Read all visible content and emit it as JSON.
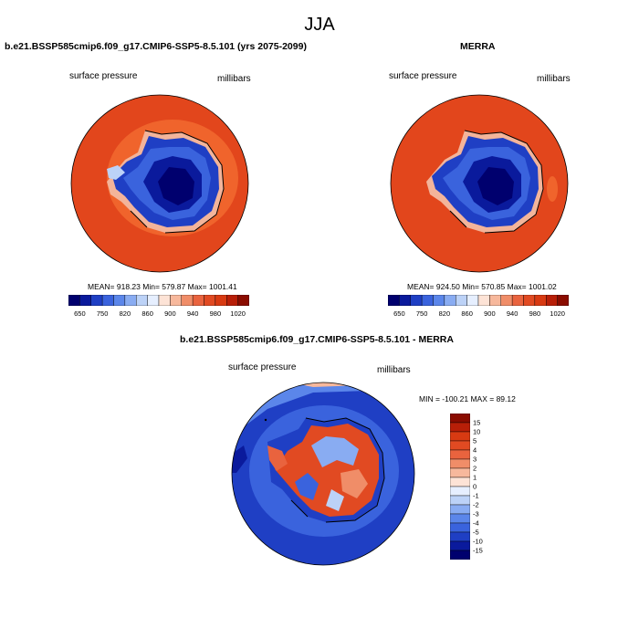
{
  "season": "JJA",
  "panels": {
    "model": {
      "title": "b.e21.BSSP585cmip6.f09_g17.CMIP6-SSP5-8.5.101 (yrs 2075-2099)",
      "variable": "surface pressure",
      "units": "millibars",
      "stats": "MEAN= 918.23  Min= 579.87  Max= 1001.41"
    },
    "obs": {
      "title": "MERRA",
      "variable": "surface pressure",
      "units": "millibars",
      "stats": "MEAN= 924.50  Min= 570.85  Max= 1001.02"
    },
    "diff": {
      "title": "b.e21.BSSP585cmip6.f09_g17.CMIP6-SSP5-8.5.101 - MERRA",
      "variable": "surface pressure",
      "units": "millibars",
      "stats": "MIN = -100.21 MAX =  89.12"
    }
  },
  "colorbar_abs": {
    "labels": [
      "650",
      "750",
      "820",
      "860",
      "900",
      "940",
      "980",
      "1020"
    ],
    "colors": [
      "#00006e",
      "#0a1a9c",
      "#1f3fc4",
      "#3a63dd",
      "#5b86ea",
      "#89acf2",
      "#bcd2f7",
      "#e6efff",
      "#fde3d6",
      "#f7b89c",
      "#f08d68",
      "#e9633e",
      "#e14a22",
      "#d83a12",
      "#b81f08",
      "#8a0c00"
    ]
  },
  "colorbar_diff": {
    "labels": [
      "15",
      "10",
      "5",
      "4",
      "3",
      "2",
      "1",
      "0",
      "-1",
      "-2",
      "-3",
      "-4",
      "-5",
      "-10",
      "-15"
    ],
    "colors": [
      "#8a0c00",
      "#b81f08",
      "#d83a12",
      "#e14a22",
      "#e9633e",
      "#f08d68",
      "#f7b89c",
      "#fde3d6",
      "#e6efff",
      "#bcd2f7",
      "#89acf2",
      "#5b86ea",
      "#3a63dd",
      "#1f3fc4",
      "#0a1a9c",
      "#00006e"
    ]
  }
}
